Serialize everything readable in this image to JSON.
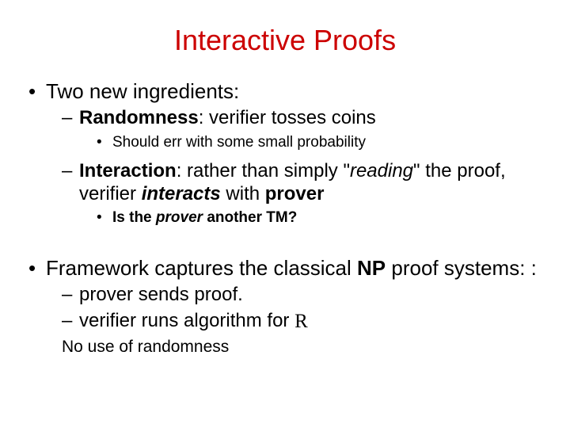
{
  "colors": {
    "title": "#cc0000",
    "text": "#000000",
    "background": "#ffffff"
  },
  "title": "Interactive Proofs",
  "b1": "Two new ingredients:",
  "b1a_bold": "Randomness",
  "b1a_rest": ": verifier tosses coins",
  "b1a_sub": "Should err with some small probability",
  "b1b_bold": "Interaction",
  "b1b_rest1": ": rather than simply \"",
  "b1b_ital": "reading",
  "b1b_rest2": "\" the proof, verifier ",
  "b1b_bi": "interacts",
  "b1b_rest3": " with ",
  "b1b_bold2": "prover",
  "b1b_sub_pre": "Is the ",
  "b1b_sub_bi": "prover ",
  "b1b_sub_post": "another TM?",
  "b2_pre": "Framework captures the classical ",
  "b2_bold": "NP",
  "b2_post": " proof systems: :",
  "b2a": "prover sends proof.",
  "b2b_pre": "verifier runs algorithm for ",
  "b2b_R": "R",
  "b2c": "No use of randomness"
}
